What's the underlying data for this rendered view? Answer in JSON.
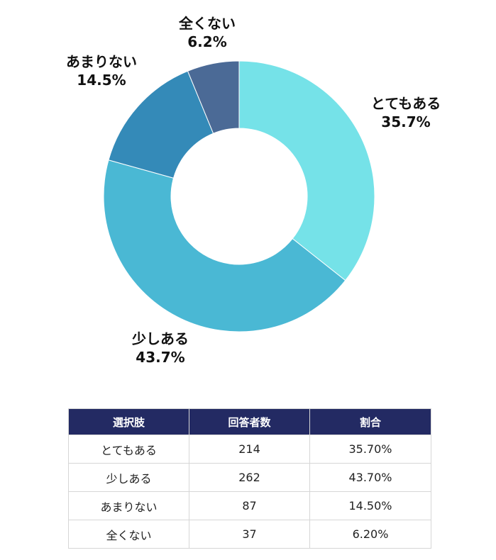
{
  "chart_data": {
    "type": "pie",
    "donut": true,
    "title": "",
    "slices": [
      {
        "label": "とてもある",
        "value": 35.7,
        "display": "35.7%",
        "color": "#75e2e8"
      },
      {
        "label": "少しある",
        "value": 43.7,
        "display": "43.7%",
        "color": "#4ab8d4"
      },
      {
        "label": "あまりない",
        "value": 14.5,
        "display": "14.5%",
        "color": "#348ab8"
      },
      {
        "label": "全くない",
        "value": 6.2,
        "display": "6.2%",
        "color": "#4b6a96"
      }
    ],
    "label_placement": "outside",
    "start": "top",
    "direction": "clockwise"
  },
  "table": {
    "headers": [
      "選択肢",
      "回答者数",
      "割合"
    ],
    "header_bg": "#232a63",
    "rows": [
      [
        "とてもある",
        "214",
        "35.70%"
      ],
      [
        "少しある",
        "262",
        "43.70%"
      ],
      [
        "あまりない",
        "87",
        "14.50%"
      ],
      [
        "全くない",
        "37",
        "6.20%"
      ]
    ]
  }
}
